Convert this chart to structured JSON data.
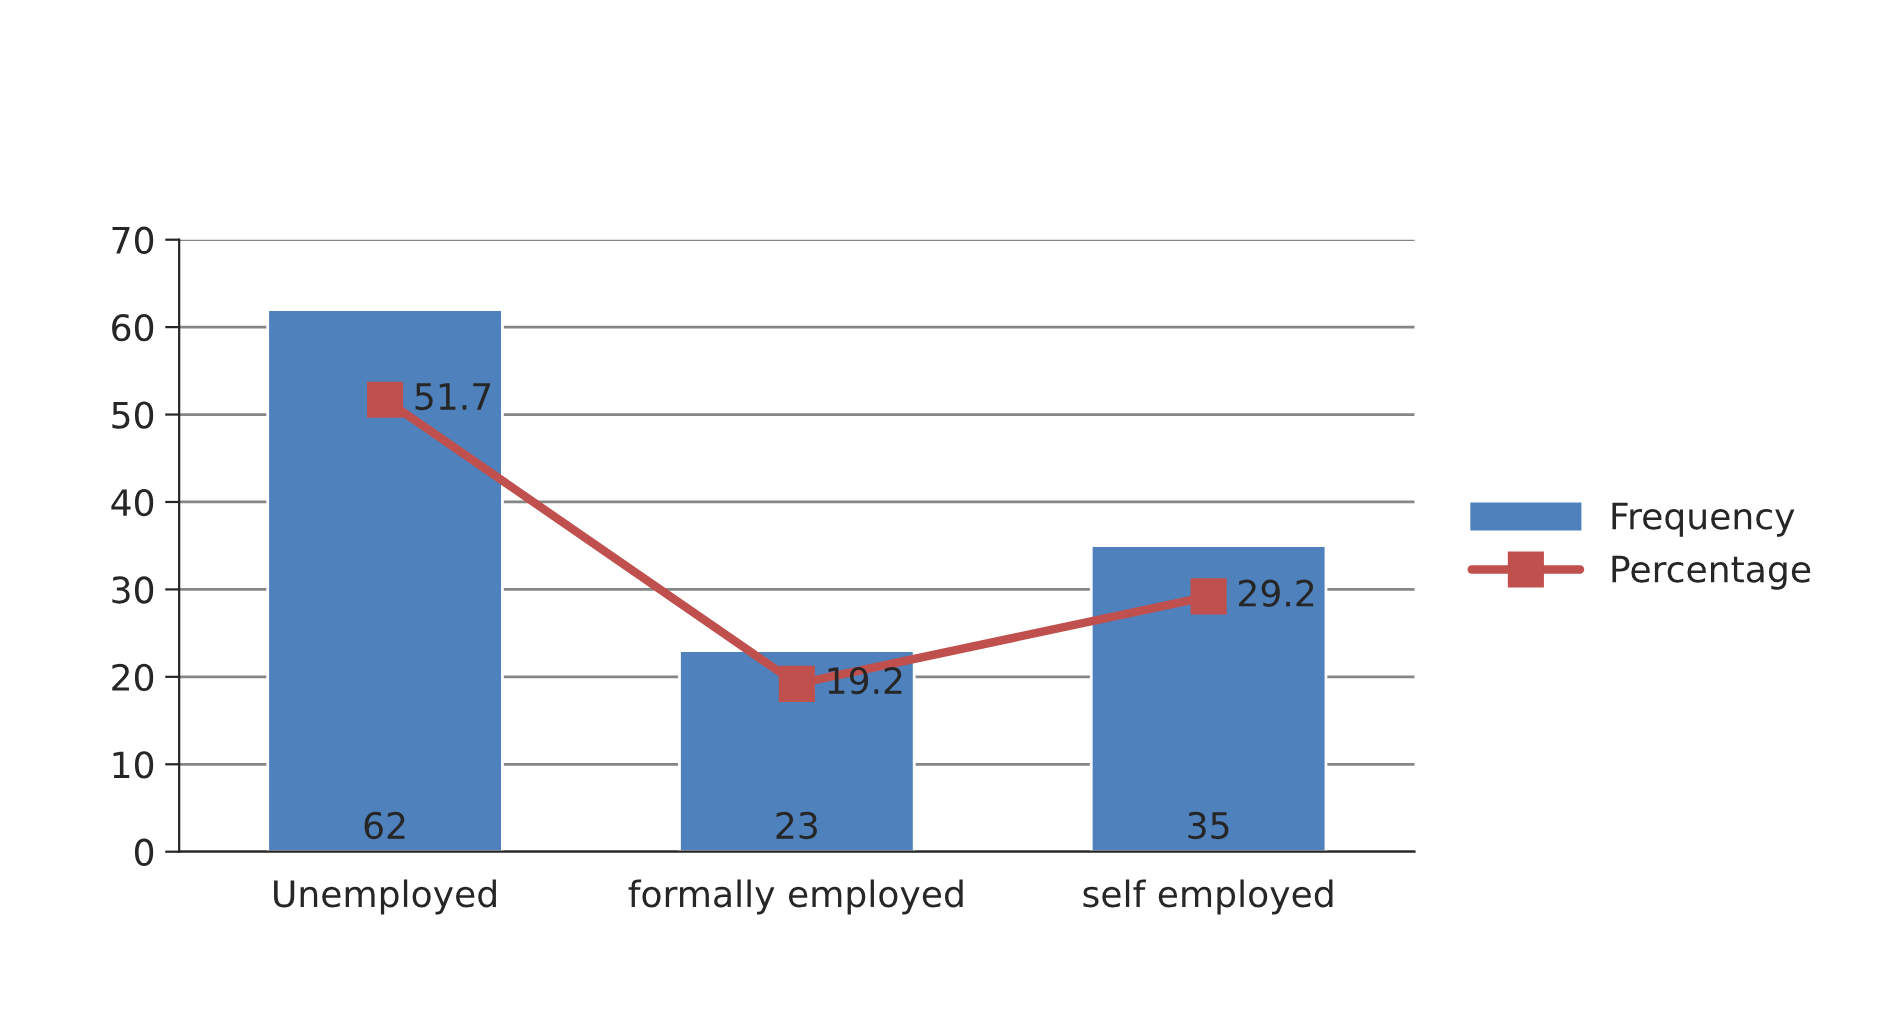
{
  "chart_data": {
    "type": "bar",
    "categories": [
      "Unemployed",
      "formally employed",
      "self employed"
    ],
    "series": [
      {
        "name": "Frequency",
        "color": "#4f81bd",
        "values": [
          62,
          23,
          35
        ]
      },
      {
        "name": "Percentage",
        "type": "line",
        "color": "#c0504d",
        "values": [
          51.7,
          19.2,
          29.2
        ]
      }
    ],
    "ylim": [
      0,
      70
    ],
    "yticks": [
      0,
      10,
      20,
      30,
      40,
      50,
      60,
      70
    ],
    "grid": "y",
    "legend": "right",
    "marker": "square",
    "line_style": "solid",
    "data_labels": true
  }
}
